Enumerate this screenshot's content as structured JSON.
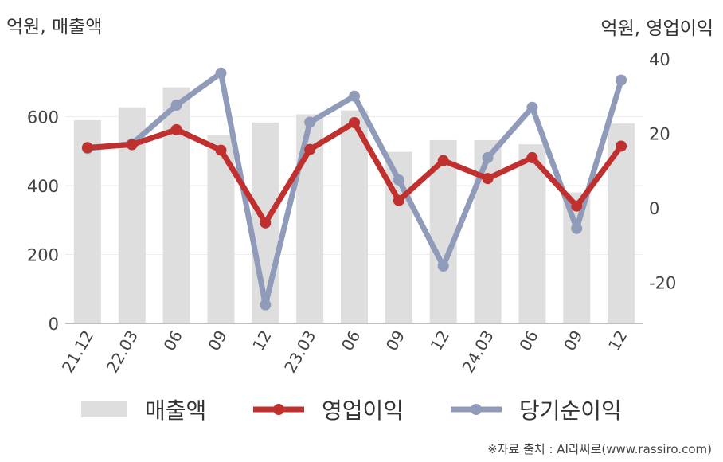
{
  "units": {
    "left": "억원, 매출액",
    "right": "억원, 영업이익"
  },
  "source": "※자료 출처 : AI라씨로(www.rassiro.com)",
  "colors": {
    "revenue": "#dedede",
    "operating_profit": "#c0302f",
    "net_profit": "#8f9bb8",
    "axis": "#aaaaaa",
    "grid": "#eeeeee"
  },
  "chart_data": {
    "type": "bar+line",
    "categories": [
      "21.12",
      "22.03",
      "06",
      "09",
      "12",
      "23.03",
      "06",
      "09",
      "12",
      "24.03",
      "06",
      "09",
      "12"
    ],
    "left_axis": {
      "ylim": [
        0,
        800
      ],
      "ticks": [
        0,
        200,
        400,
        600
      ]
    },
    "right_axis": {
      "ylim": [
        -31,
        43
      ],
      "ticks": [
        -20,
        0,
        20,
        40
      ]
    },
    "series": [
      {
        "name": "매출액",
        "type": "bar",
        "axis": "left",
        "values": [
          590,
          627,
          685,
          548,
          583,
          607,
          618,
          498,
          532,
          532,
          520,
          380,
          580
        ]
      },
      {
        "name": "영업이익",
        "type": "line",
        "axis": "right",
        "values": [
          16.2,
          17.0,
          21.0,
          15.5,
          -4.0,
          15.7,
          22.9,
          2.0,
          12.7,
          7.9,
          13.5,
          0.5,
          16.6
        ]
      },
      {
        "name": "당기순이익",
        "type": "line",
        "axis": "right",
        "values": [
          16.0,
          17.2,
          27.6,
          36.2,
          -26.0,
          23.0,
          30.0,
          7.5,
          -15.6,
          13.5,
          27.0,
          -5.5,
          34.3
        ]
      }
    ]
  }
}
